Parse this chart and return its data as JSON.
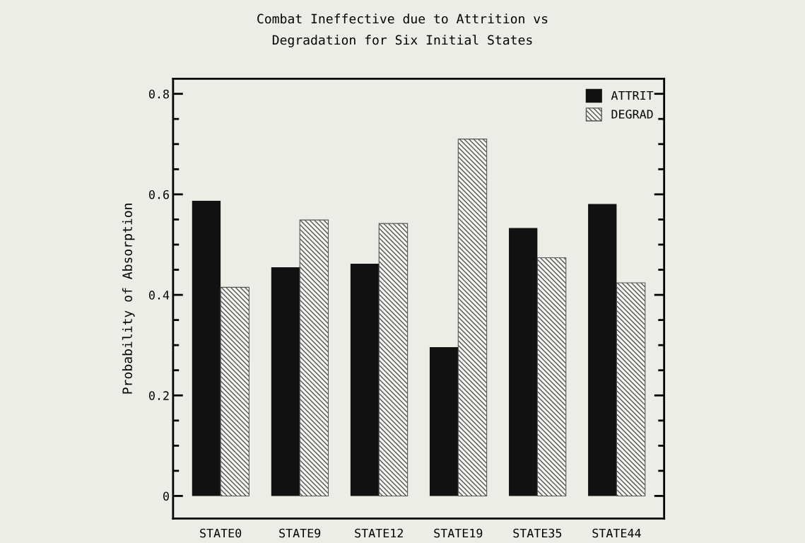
{
  "chart_data": {
    "type": "bar",
    "title": "Combat Ineffective due to Attrition vs\nDegradation for Six Initial States",
    "ylabel": "Probability of Absorption",
    "categories": [
      "STATE0",
      "STATE9",
      "STATE12",
      "STATE19",
      "STATE35",
      "STATE44"
    ],
    "series": [
      {
        "name": "ATTRIT",
        "color": "#111111",
        "values": [
          0.587,
          0.455,
          0.462,
          0.296,
          0.533,
          0.581
        ]
      },
      {
        "name": "DEGRAD",
        "color": "#555555",
        "values": [
          0.415,
          0.549,
          0.542,
          0.71,
          0.474,
          0.424
        ]
      }
    ],
    "ylim": [
      -0.045,
      0.83
    ],
    "yticks": [
      0,
      0.2,
      0.4,
      0.6,
      0.8
    ],
    "grid": false,
    "legend": "top right"
  }
}
